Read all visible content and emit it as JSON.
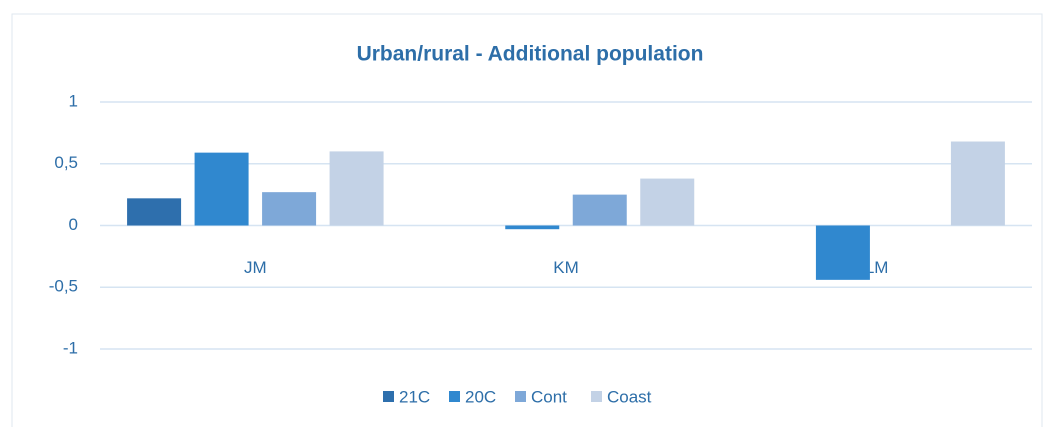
{
  "chart_data": {
    "type": "bar",
    "title": "Urban/rural  - Additional population",
    "categories": [
      "JM",
      "KM",
      "LM"
    ],
    "series": [
      {
        "name": "21C",
        "color": "#2e6fad",
        "values": [
          0.22,
          null,
          null
        ]
      },
      {
        "name": "20C",
        "color": "#3088cf",
        "values": [
          0.59,
          -0.03,
          -0.44
        ]
      },
      {
        "name": "Cont",
        "color": "#7ea8d8",
        "values": [
          0.27,
          0.25,
          null
        ]
      },
      {
        "name": "Coast",
        "color": "#c3d2e6",
        "values": [
          0.6,
          0.38,
          0.68
        ]
      }
    ],
    "ylim": [
      -1,
      1
    ],
    "yticks": [
      {
        "value": -1,
        "label": "-1"
      },
      {
        "value": -0.5,
        "label": "-0,5"
      },
      0,
      {
        "value": 0.5,
        "label": "0,5"
      },
      1
    ],
    "grid": true,
    "legend": "bottom"
  }
}
